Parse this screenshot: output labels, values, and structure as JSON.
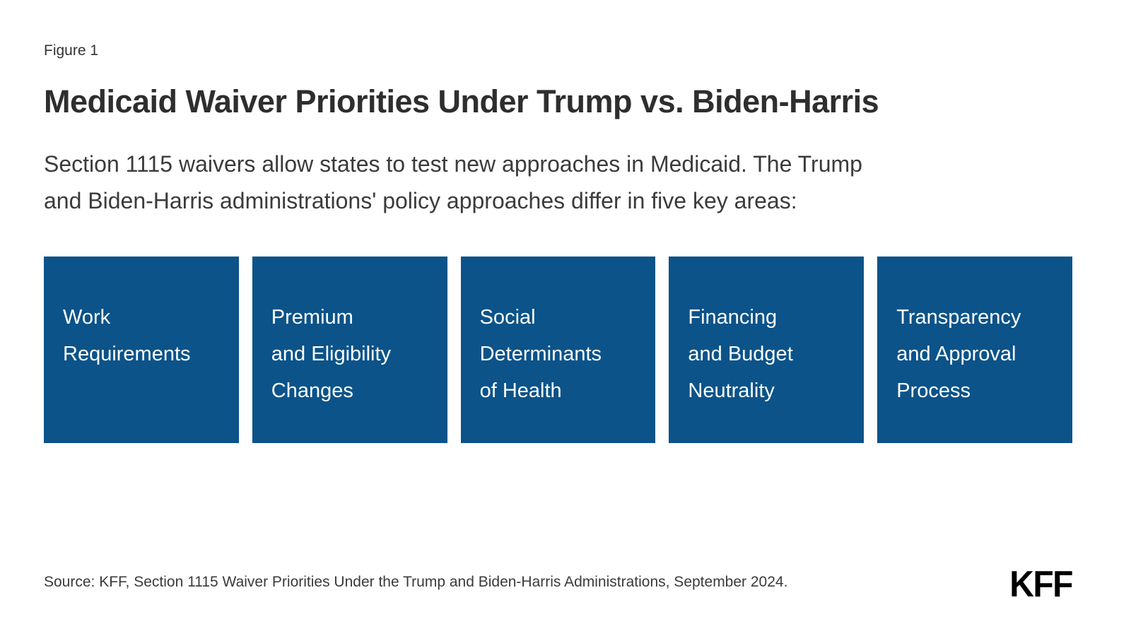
{
  "figure_label": "Figure 1",
  "title": "Medicaid Waiver Priorities Under Trump vs. Biden-Harris",
  "subtitle": "Section 1115 waivers allow states to test new approaches in Medicaid. The Trump\nand Biden-Harris administrations' policy approaches differ in five key areas:",
  "boxes": [
    {
      "label": "Work\nRequirements"
    },
    {
      "label": "Premium\nand Eligibility\nChanges"
    },
    {
      "label": "Social\nDeterminants\nof Health"
    },
    {
      "label": "Financing\nand Budget\nNeutrality"
    },
    {
      "label": "Transparency\nand Approval\nProcess"
    }
  ],
  "source": "Source: KFF, Section 1115 Waiver Priorities Under the Trump and Biden-Harris Administrations, September 2024.",
  "logo_text": "KFF",
  "colors": {
    "box_blue": "#0b5389",
    "text_dark": "#333333",
    "background": "#ffffff"
  }
}
